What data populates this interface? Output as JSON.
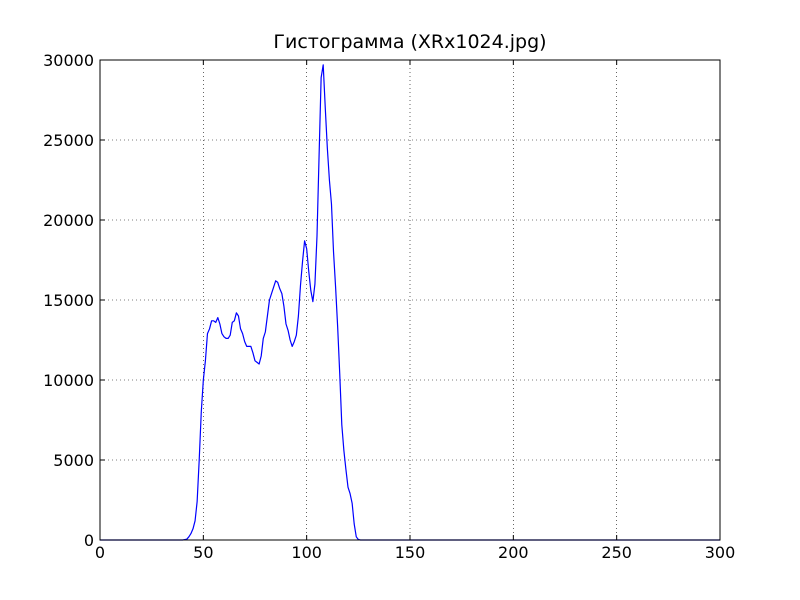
{
  "chart_data": {
    "type": "line",
    "title": "Гистограмма (XRx1024.jpg)",
    "xlabel": "",
    "ylabel": "",
    "xlim": [
      0,
      300
    ],
    "ylim": [
      0,
      30000
    ],
    "grid": true,
    "x_ticks": [
      "0",
      "50",
      "100",
      "150",
      "200",
      "250",
      "300"
    ],
    "y_ticks": [
      "0",
      "5000",
      "10000",
      "15000",
      "20000",
      "25000",
      "30000"
    ],
    "series": [
      {
        "color": "#0000ff",
        "x": [
          0,
          40,
          42,
          43,
          44,
          45,
          46,
          47,
          48,
          49,
          50,
          51,
          52,
          53,
          54,
          55,
          56,
          57,
          58,
          59,
          60,
          61,
          62,
          63,
          64,
          65,
          66,
          67,
          68,
          69,
          70,
          71,
          72,
          73,
          74,
          75,
          76,
          77,
          78,
          79,
          80,
          81,
          82,
          83,
          84,
          85,
          86,
          87,
          88,
          89,
          90,
          91,
          92,
          93,
          94,
          95,
          96,
          97,
          98,
          99,
          100,
          101,
          102,
          103,
          104,
          105,
          106,
          107,
          108,
          109,
          110,
          111,
          112,
          113,
          114,
          115,
          116,
          117,
          118,
          119,
          120,
          121,
          122,
          123,
          124,
          125,
          126,
          127,
          130,
          300
        ],
        "y": [
          0,
          0,
          50,
          200,
          400,
          700,
          1200,
          2400,
          5000,
          8000,
          10000,
          11200,
          12900,
          13200,
          13700,
          13700,
          13600,
          13900,
          13500,
          12900,
          12700,
          12600,
          12600,
          12800,
          13600,
          13700,
          14200,
          14000,
          13200,
          12900,
          12400,
          12100,
          12100,
          12100,
          11700,
          11200,
          11100,
          11000,
          11500,
          12600,
          13000,
          14000,
          15000,
          15400,
          15800,
          16200,
          16100,
          15700,
          15400,
          14600,
          13500,
          13100,
          12500,
          12100,
          12400,
          12800,
          14000,
          15900,
          17400,
          18700,
          18200,
          16800,
          15600,
          14900,
          16000,
          19000,
          24000,
          28900,
          29700,
          27000,
          24500,
          22500,
          21000,
          18000,
          15800,
          13300,
          10400,
          7200,
          5600,
          4400,
          3300,
          2900,
          2300,
          1000,
          200,
          30,
          0,
          0,
          0,
          0
        ]
      }
    ]
  }
}
